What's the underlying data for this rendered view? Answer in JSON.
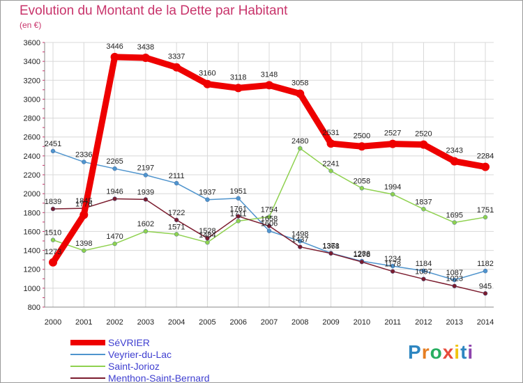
{
  "chart_data": {
    "type": "line",
    "title": "Evolution du Montant de la Dette par Habitant",
    "subtitle": "(en €)",
    "xlabel": "",
    "ylabel": "",
    "x": [
      "2000",
      "2001",
      "2002",
      "2003",
      "2004",
      "2005",
      "2006",
      "2007",
      "2008",
      "2009",
      "2010",
      "2011",
      "2012",
      "2013",
      "2014"
    ],
    "ylim": [
      800,
      3600
    ],
    "yticks": [
      "800",
      "1000",
      "1200",
      "1400",
      "1600",
      "1800",
      "2000",
      "2200",
      "2400",
      "2600",
      "2800",
      "3000",
      "3200",
      "3400",
      "3600"
    ],
    "grid": true,
    "legend_position": "bottom-left",
    "series": [
      {
        "name": "SéVRIER",
        "color": "#ee0000",
        "values": [
          1273,
          1776,
          3446,
          3438,
          3337,
          3160,
          3118,
          3148,
          3058,
          2531,
          2500,
          2527,
          2520,
          2343,
          2284
        ]
      },
      {
        "name": "Veyrier-du-Lac",
        "color": "#4f94cd",
        "values": [
          2451,
          2336,
          2265,
          2197,
          2111,
          1937,
          1951,
          1606,
          1498,
          1371,
          1286,
          1234,
          1184,
          1087,
          1182
        ]
      },
      {
        "name": "Saint-Jorioz",
        "color": "#8fd14f",
        "values": [
          1510,
          1398,
          1470,
          1602,
          1571,
          1484,
          1711,
          1754,
          2480,
          2241,
          2058,
          1994,
          1837,
          1695,
          1751
        ]
      },
      {
        "name": "Menthon-Saint-Bernard",
        "color": "#7b1c2e",
        "values": [
          1839,
          1845,
          1946,
          1939,
          1722,
          1528,
          1761,
          1658,
          1437,
          1368,
          1278,
          1178,
          1097,
          1023,
          945
        ]
      }
    ]
  },
  "logo": {
    "letters": [
      "P",
      "r",
      "o",
      "x",
      "i",
      "t",
      "i"
    ],
    "colors": [
      "#2e86c1",
      "#e67e22",
      "#27ae60",
      "#e74c3c",
      "#f1c40f",
      "#2e86c1",
      "#8e44ad"
    ]
  }
}
